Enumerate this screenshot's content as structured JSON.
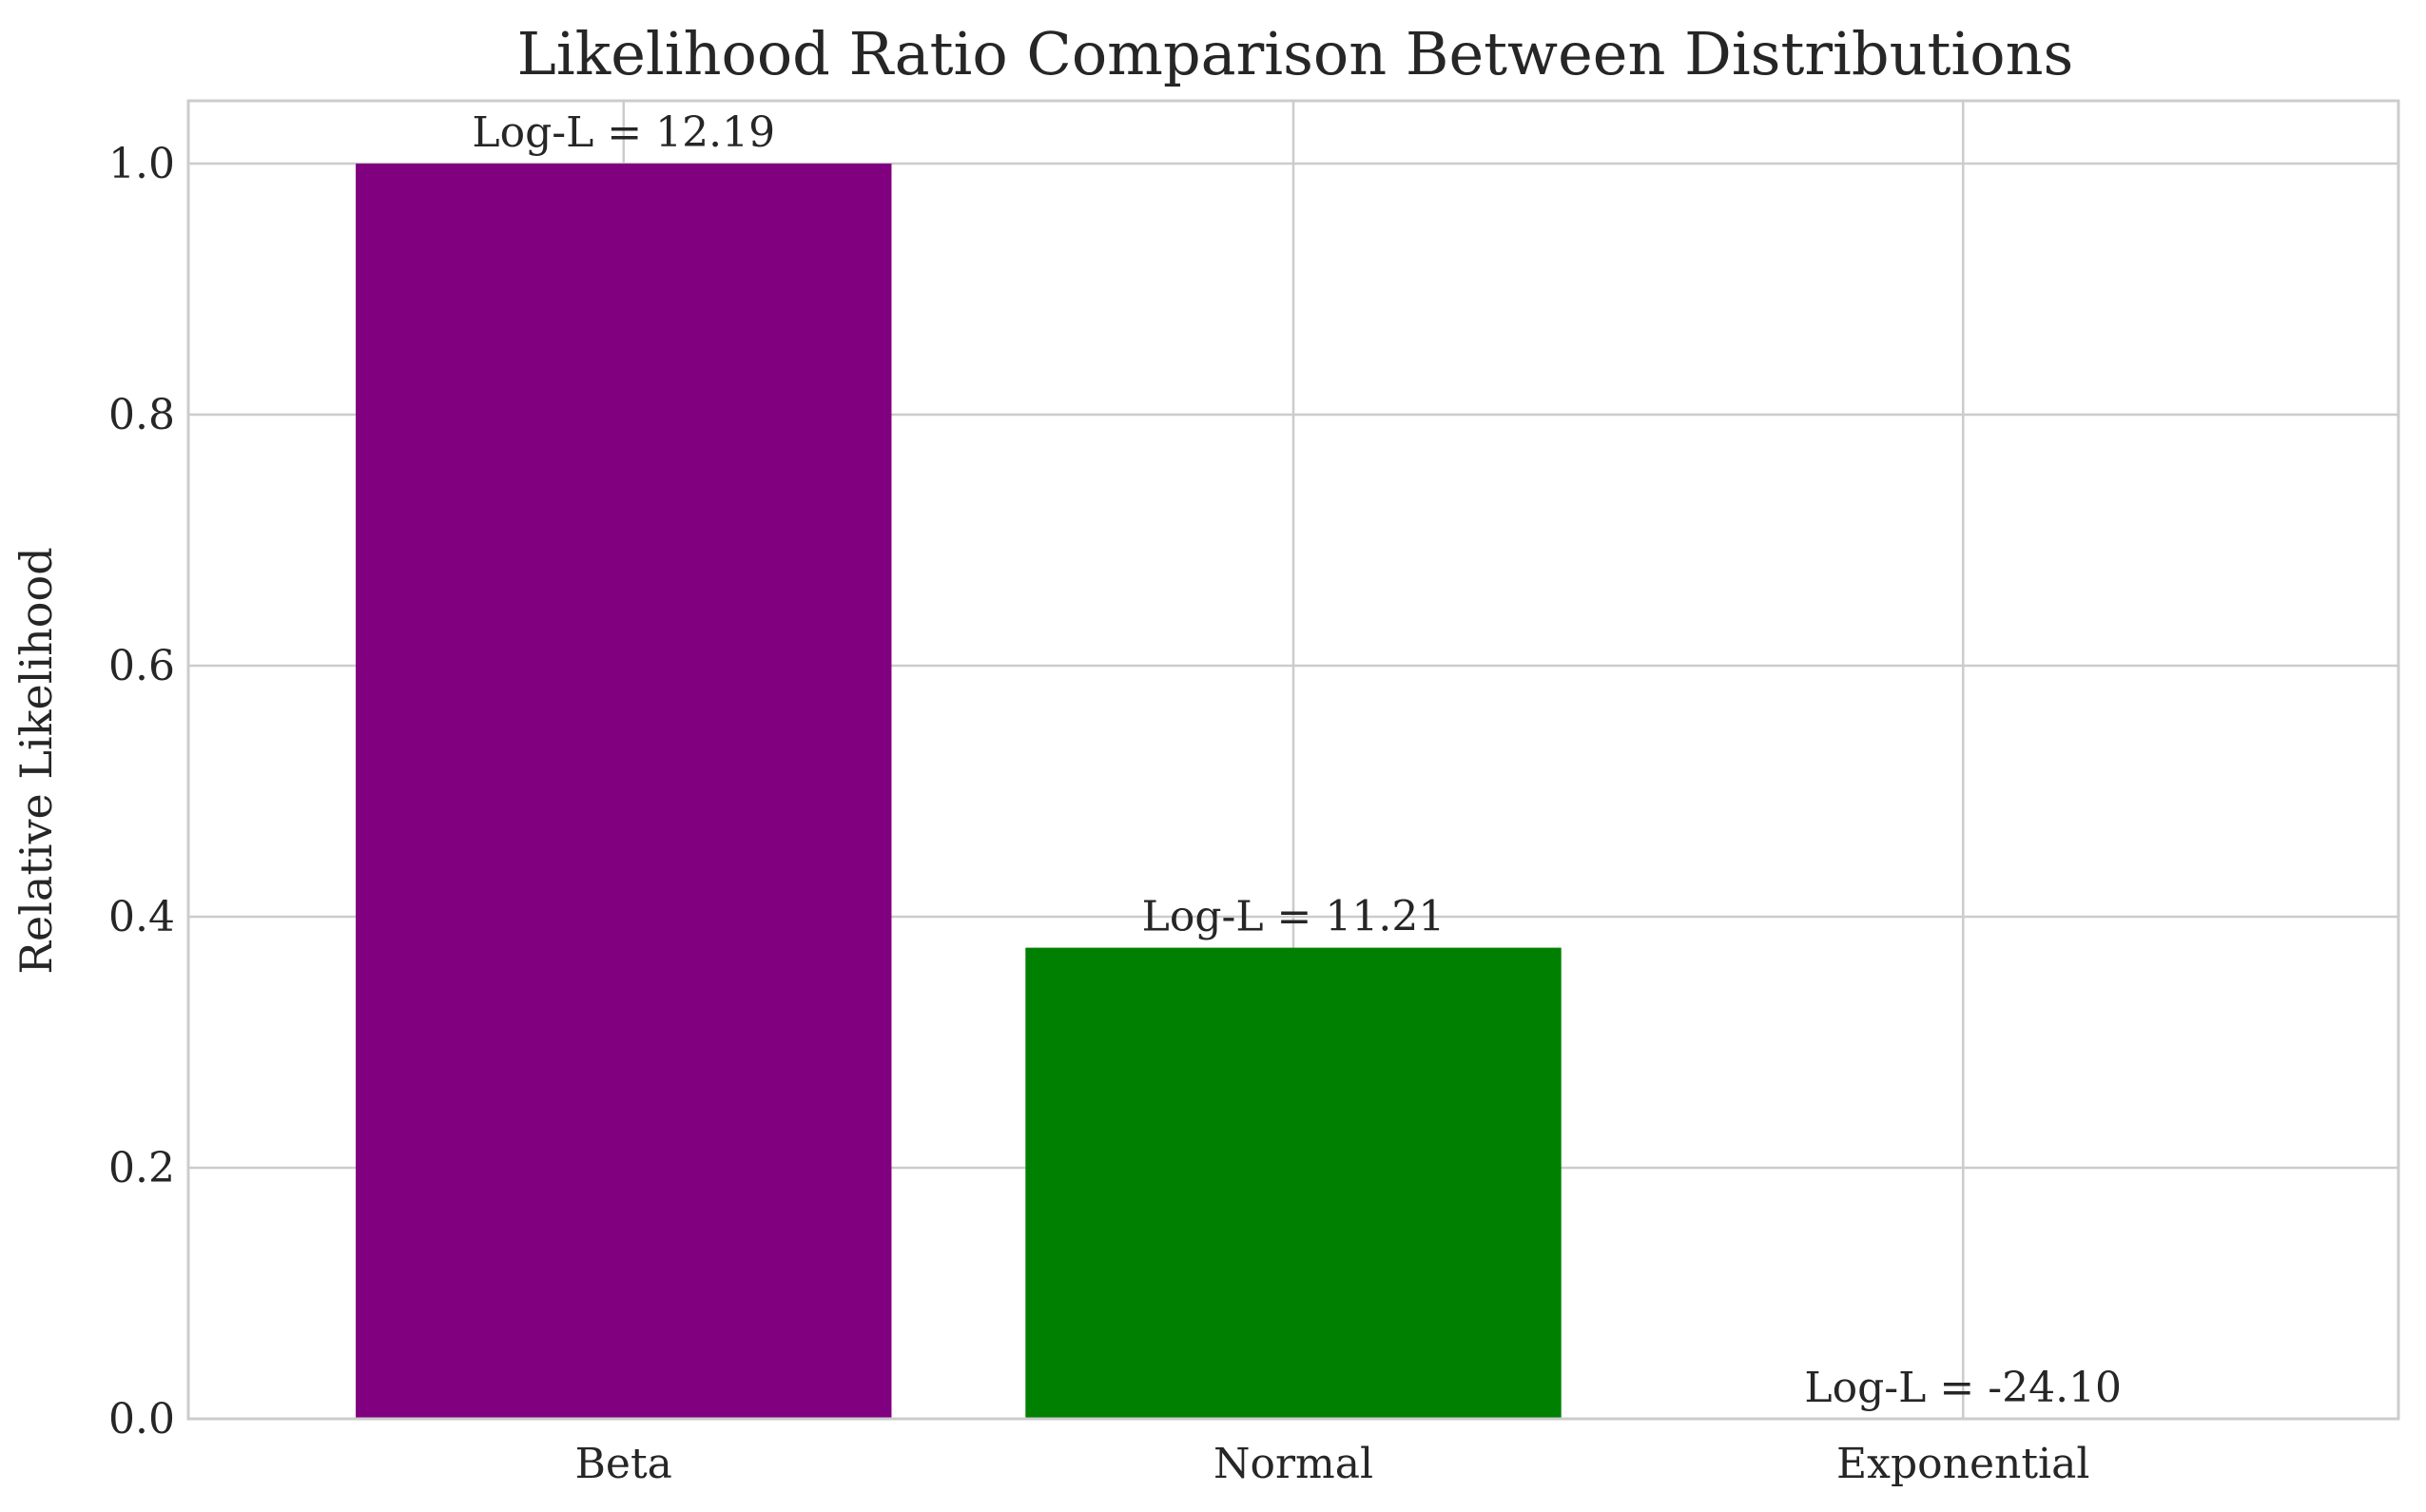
{
  "chart_data": {
    "type": "bar",
    "title": "Likelihood Ratio Comparison Between Distributions",
    "xlabel": "",
    "ylabel": "Relative Likelihood",
    "categories": [
      "Beta",
      "Normal",
      "Exponential"
    ],
    "values": [
      1.0,
      0.3753,
      0.0
    ],
    "bar_labels": [
      "Log-L = 12.19",
      "Log-L = 11.21",
      "Log-L = -24.10"
    ],
    "bar_colors": [
      "#800080",
      "#008000",
      "#0000ff"
    ],
    "ylim": [
      0,
      1.05
    ],
    "yticks": [
      0.0,
      0.2,
      0.4,
      0.6,
      0.8,
      1.0
    ],
    "ytick_labels": [
      "0.0",
      "0.2",
      "0.4",
      "0.6",
      "0.8",
      "1.0"
    ],
    "grid": true,
    "colors": {
      "grid": "#cccccc",
      "axes_edge": "#cccccc",
      "text": "#262626",
      "background": "#ffffff"
    }
  }
}
